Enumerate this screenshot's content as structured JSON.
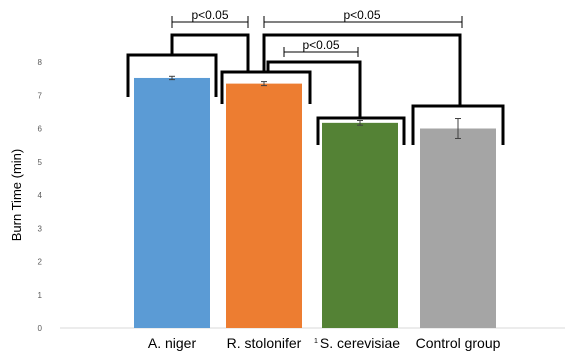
{
  "chart_data": {
    "type": "bar",
    "title": "",
    "xlabel": "",
    "ylabel": "Burn Time (min)",
    "ylim": [
      0,
      8
    ],
    "yticks": [
      0,
      1,
      2,
      3,
      4,
      5,
      6,
      7,
      8
    ],
    "grid": false,
    "categories": [
      "A. niger",
      "R. stolonifer",
      "S. cerevisiae",
      "Control group"
    ],
    "series": [
      {
        "values": [
          7.52,
          7.35,
          6.17,
          6.0
        ],
        "errors": [
          0.05,
          0.06,
          0.07,
          0.3
        ],
        "colors": [
          "#5b9bd5",
          "#ed7d31",
          "#548235",
          "#a5a5a5"
        ]
      }
    ],
    "significance": [
      {
        "label": "p<0.05",
        "from": 0,
        "to": 1
      },
      {
        "label": "p<0.05",
        "from": 1,
        "to": 3
      },
      {
        "label": "p<0.05",
        "from": 1,
        "to": 2
      }
    ],
    "stray_mark": "1"
  }
}
